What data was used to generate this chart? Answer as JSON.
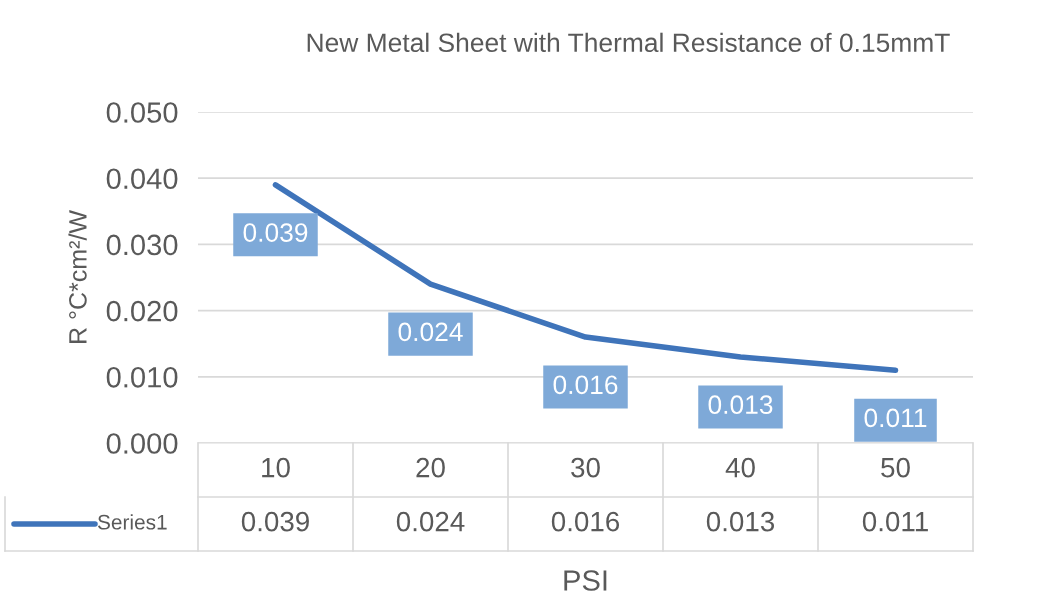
{
  "chart_data": {
    "type": "line",
    "title": "New Metal Sheet with Thermal Resistance of 0.15mmT",
    "xlabel": "PSI",
    "ylabel": "R °C*cm²/W",
    "categories": [
      "10",
      "20",
      "30",
      "40",
      "50"
    ],
    "series": [
      {
        "name": "Series1",
        "color": "#3f74ba",
        "values": [
          0.039,
          0.024,
          0.016,
          0.013,
          0.011
        ]
      }
    ],
    "annotations": [
      "0.039",
      "0.024",
      "0.016",
      "0.013",
      "0.011"
    ],
    "ylim": [
      0,
      0.05
    ],
    "yticks": [
      {
        "value": 0,
        "label": "0.000"
      },
      {
        "value": 0.01,
        "label": "0.010"
      },
      {
        "value": 0.02,
        "label": "0.020"
      },
      {
        "value": 0.03,
        "label": "0.030"
      },
      {
        "value": 0.04,
        "label": "0.040"
      },
      {
        "value": 0.05,
        "label": "0.050"
      }
    ],
    "grid": "y",
    "legend": "bottom",
    "data_labels": true,
    "marker": "none",
    "line_style": "solid"
  }
}
